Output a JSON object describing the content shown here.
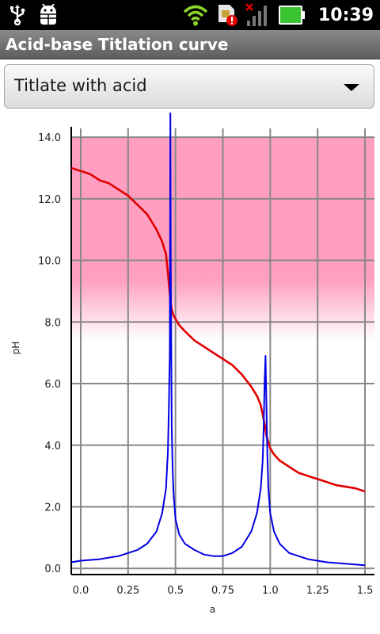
{
  "status_bar": {
    "time": "10:39",
    "icons": [
      "usb-icon",
      "android-debug-icon",
      "wifi-icon",
      "sim-alert-icon",
      "signal-no-service-icon",
      "battery-icon"
    ]
  },
  "title_bar": {
    "title": "Acid-base Titlation curve"
  },
  "spinner": {
    "selected": "Titlate with acid"
  },
  "colors": {
    "ph_curve": "#e00000",
    "derivative_curve": "#0000e6",
    "indicator_band": "#ff9ec0",
    "grid": "#888888"
  },
  "chart_data": {
    "type": "line",
    "title": "",
    "xlabel": "a",
    "ylabel": "pH",
    "xlim": [
      -0.05,
      1.55
    ],
    "ylim": [
      -0.2,
      14.8
    ],
    "xticks": [
      0.0,
      0.25,
      0.5,
      0.75,
      1.0,
      1.25,
      1.5
    ],
    "xtick_labels": [
      "0.0",
      "0.25",
      "0.5",
      "0.75",
      "1.0",
      "1.25",
      "1.5"
    ],
    "yticks": [
      0,
      2,
      4,
      6,
      8,
      10,
      12,
      14
    ],
    "ytick_labels": [
      "0.0",
      "2.0",
      "4.0",
      "6.0",
      "8.0",
      "10.0",
      "12.0",
      "14.0"
    ],
    "grid": true,
    "indicator_band": {
      "solid_from": 9.4,
      "solid_to": 14.0,
      "fade_to": 7.4
    },
    "series": [
      {
        "color": "#e00000",
        "x": [
          -0.05,
          0.0,
          0.05,
          0.1,
          0.15,
          0.2,
          0.25,
          0.3,
          0.35,
          0.4,
          0.43,
          0.45,
          0.46,
          0.47,
          0.475,
          0.48,
          0.49,
          0.5,
          0.52,
          0.55,
          0.6,
          0.65,
          0.7,
          0.75,
          0.8,
          0.85,
          0.9,
          0.93,
          0.95,
          0.96,
          0.97,
          0.975,
          0.98,
          0.99,
          1.0,
          1.02,
          1.05,
          1.1,
          1.15,
          1.2,
          1.25,
          1.3,
          1.35,
          1.4,
          1.45,
          1.5
        ],
        "y": [
          13.0,
          12.9,
          12.8,
          12.6,
          12.5,
          12.3,
          12.1,
          11.8,
          11.5,
          11.0,
          10.6,
          10.2,
          9.6,
          8.9,
          8.6,
          8.4,
          8.2,
          8.1,
          7.9,
          7.7,
          7.4,
          7.2,
          7.0,
          6.8,
          6.6,
          6.3,
          5.9,
          5.6,
          5.3,
          5.0,
          4.7,
          4.5,
          4.3,
          4.1,
          3.9,
          3.7,
          3.5,
          3.3,
          3.1,
          3.0,
          2.9,
          2.8,
          2.7,
          2.65,
          2.6,
          2.5
        ]
      },
      {
        "color": "#0000e6",
        "x": [
          -0.05,
          0.0,
          0.1,
          0.2,
          0.3,
          0.35,
          0.4,
          0.43,
          0.45,
          0.46,
          0.465,
          0.47,
          0.473,
          0.475,
          0.477,
          0.48,
          0.485,
          0.49,
          0.5,
          0.52,
          0.55,
          0.6,
          0.65,
          0.7,
          0.75,
          0.8,
          0.85,
          0.9,
          0.93,
          0.95,
          0.96,
          0.965,
          0.97,
          0.975,
          0.98,
          0.985,
          0.99,
          1.0,
          1.02,
          1.05,
          1.1,
          1.2,
          1.3,
          1.4,
          1.5
        ],
        "y": [
          0.2,
          0.25,
          0.3,
          0.4,
          0.6,
          0.8,
          1.2,
          1.8,
          2.6,
          3.8,
          5.2,
          7.0,
          14.8,
          10.0,
          7.8,
          4.6,
          3.2,
          2.4,
          1.6,
          1.1,
          0.8,
          0.6,
          0.45,
          0.4,
          0.4,
          0.5,
          0.7,
          1.2,
          1.8,
          2.6,
          3.5,
          4.5,
          6.0,
          6.9,
          5.2,
          3.6,
          2.6,
          1.8,
          1.2,
          0.8,
          0.5,
          0.3,
          0.2,
          0.15,
          0.1
        ]
      }
    ]
  }
}
